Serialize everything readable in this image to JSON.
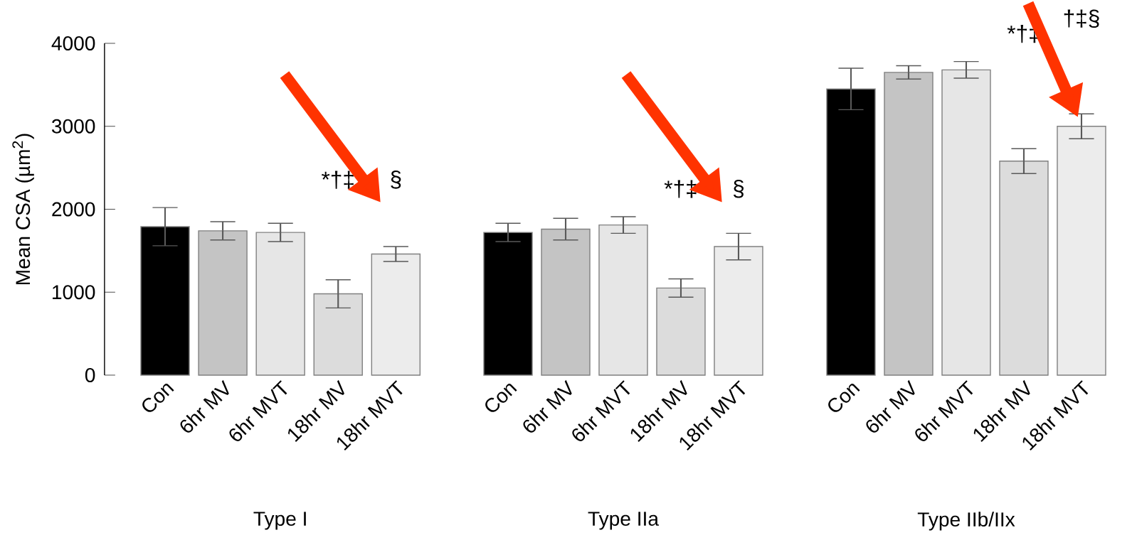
{
  "chart_data": [
    {
      "type": "bar",
      "xlabel": "Type I",
      "ylabel": "Mean CSA (µm$^{2}$)",
      "categories": [
        "Con",
        "6hr MV",
        "6hr MVT",
        "18hr MV",
        "18hr MVT"
      ],
      "values": [
        1790,
        1740,
        1720,
        980,
        1460
      ],
      "errors": [
        230,
        110,
        110,
        170,
        90
      ],
      "colors": [
        "#000000",
        "#c4c4c4",
        "#e6e6e6",
        "#dcdcdc",
        "#ececec"
      ],
      "ylim": [
        0,
        4000
      ],
      "yticks": [
        0,
        1000,
        2000,
        3000,
        4000
      ],
      "grid": false,
      "annotations": [
        "*†‡",
        "§"
      ]
    },
    {
      "type": "bar",
      "xlabel": "Type IIa",
      "categories": [
        "Con",
        "6hr MV",
        "6hr MVT",
        "18hr MV",
        "18hr MVT"
      ],
      "values": [
        1720,
        1760,
        1810,
        1050,
        1550
      ],
      "errors": [
        110,
        130,
        100,
        110,
        160
      ],
      "colors": [
        "#000000",
        "#c4c4c4",
        "#e6e6e6",
        "#dcdcdc",
        "#ececec"
      ],
      "ylim": [
        0,
        4000
      ],
      "yticks": [
        0,
        1000,
        2000,
        3000,
        4000
      ],
      "tick_labels": "x",
      "grid": false,
      "annotations": [
        "*†‡",
        "§"
      ]
    },
    {
      "type": "bar",
      "xlabel": "Type IIb/IIx",
      "categories": [
        "Con",
        "6hr MV",
        "6hr MVT",
        "18hr MV",
        "18hr MVT"
      ],
      "values": [
        3450,
        3650,
        3680,
        2580,
        3000
      ],
      "errors": [
        250,
        80,
        100,
        150,
        150
      ],
      "colors": [
        "#000000",
        "#c4c4c4",
        "#e6e6e6",
        "#dcdcdc",
        "#ececec"
      ],
      "ylim": [
        0,
        4000
      ],
      "yticks": [
        0,
        1000,
        2000,
        3000,
        4000
      ],
      "tick_labels": "x",
      "grid": false,
      "annotations": [
        "*†‡",
        "†‡§"
      ]
    }
  ]
}
